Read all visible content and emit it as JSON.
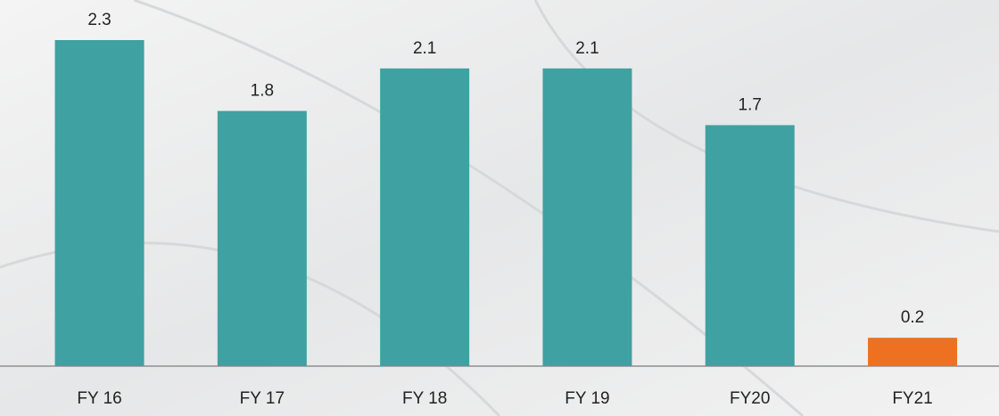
{
  "chart_data": {
    "type": "bar",
    "categories": [
      "FY 16",
      "FY 17",
      "FY 18",
      "FY 19",
      "FY20",
      "FY21"
    ],
    "values": [
      2.3,
      1.8,
      2.1,
      2.1,
      1.7,
      0.2
    ],
    "colors": [
      "#3fa1a1",
      "#3fa1a1",
      "#3fa1a1",
      "#3fa1a1",
      "#3fa1a1",
      "#ed7121"
    ]
  }
}
